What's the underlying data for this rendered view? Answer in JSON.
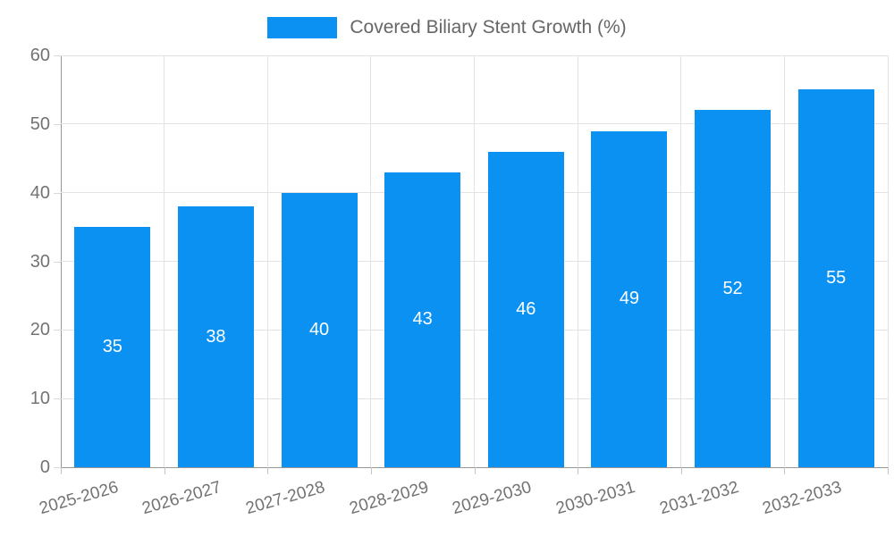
{
  "legend": {
    "label": "Covered Biliary Stent Growth (%)",
    "swatch_color": "#0a91f2"
  },
  "chart_data": {
    "type": "bar",
    "title": "",
    "xlabel": "",
    "ylabel": "",
    "categories": [
      "2025-2026",
      "2026-2027",
      "2027-2028",
      "2028-2029",
      "2029-2030",
      "2030-2031",
      "2031-2032",
      "2032-2033"
    ],
    "series": [
      {
        "name": "Covered Biliary Stent Growth (%)",
        "values": [
          35,
          38,
          40,
          43,
          46,
          49,
          52,
          55
        ],
        "color": "#0a91f2"
      }
    ],
    "value_labels_shown": true,
    "value_label_color": "#ffffff",
    "ylim": [
      0,
      60
    ],
    "y_ticks": [
      0,
      10,
      20,
      30,
      40,
      50,
      60
    ],
    "grid": true,
    "grid_color": "#e3e3e3",
    "axis_color": "#969696",
    "tick_label_color": "#737373",
    "legend_position": "top"
  }
}
